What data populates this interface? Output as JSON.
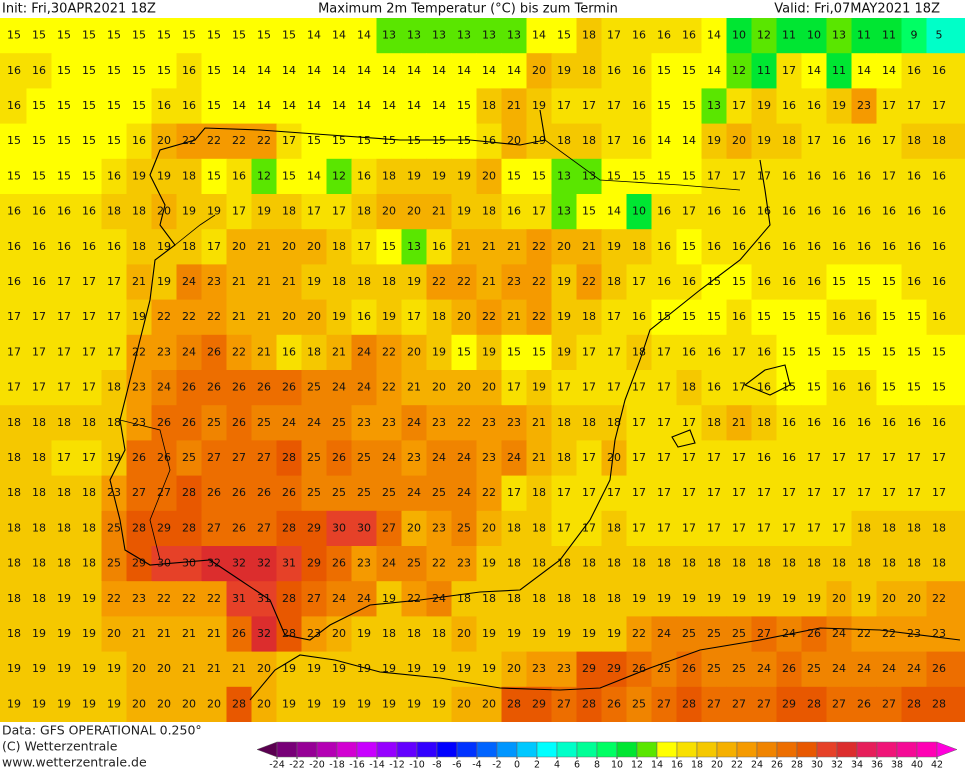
{
  "header": {
    "init": "Init: Fri,30APR2021 18Z",
    "title": "Maximum 2m Temperatur (°C) bis zum Termin",
    "valid": "Valid: Fri,07MAY2021 18Z"
  },
  "map": {
    "rows": [
      [
        15,
        15,
        15,
        15,
        15,
        15,
        15,
        15,
        15,
        15,
        15,
        15,
        14,
        14,
        14,
        13,
        13,
        13,
        13,
        13,
        13,
        14,
        15,
        18,
        17,
        16,
        16,
        16,
        14,
        10,
        12,
        11,
        10,
        13,
        11,
        11,
        9,
        5
      ],
      [
        16,
        16,
        15,
        15,
        15,
        15,
        15,
        16,
        15,
        14,
        14,
        14,
        14,
        14,
        14,
        14,
        14,
        14,
        14,
        14,
        14,
        20,
        19,
        18,
        16,
        16,
        15,
        15,
        14,
        12,
        11,
        17,
        14,
        11,
        14,
        14,
        16,
        16
      ],
      [
        16,
        15,
        15,
        15,
        15,
        15,
        16,
        16,
        15,
        14,
        14,
        14,
        14,
        14,
        14,
        14,
        14,
        14,
        15,
        18,
        21,
        19,
        17,
        17,
        17,
        16,
        15,
        15,
        13,
        17,
        19,
        16,
        16,
        19,
        23,
        17,
        17,
        17
      ],
      [
        15,
        15,
        15,
        15,
        15,
        16,
        20,
        22,
        22,
        22,
        22,
        17,
        15,
        15,
        15,
        15,
        15,
        15,
        15,
        16,
        20,
        19,
        18,
        18,
        17,
        16,
        14,
        14,
        19,
        20,
        19,
        18,
        17,
        16,
        16,
        17,
        18,
        18
      ],
      [
        15,
        15,
        15,
        15,
        16,
        19,
        19,
        18,
        15,
        16,
        12,
        15,
        14,
        12,
        16,
        18,
        19,
        19,
        19,
        20,
        15,
        15,
        13,
        13,
        15,
        15,
        15,
        15,
        17,
        17,
        17,
        16,
        16,
        16,
        16,
        17,
        16,
        16
      ],
      [
        16,
        16,
        16,
        16,
        18,
        18,
        20,
        19,
        19,
        17,
        19,
        18,
        17,
        17,
        18,
        20,
        20,
        21,
        19,
        18,
        16,
        17,
        13,
        15,
        14,
        10,
        16,
        17,
        16,
        16,
        16,
        16,
        16,
        16,
        16,
        16,
        16,
        16
      ],
      [
        16,
        16,
        16,
        16,
        16,
        18,
        19,
        18,
        17,
        20,
        21,
        20,
        20,
        18,
        17,
        15,
        13,
        16,
        21,
        21,
        21,
        22,
        20,
        21,
        19,
        18,
        16,
        15,
        16,
        16,
        16,
        16,
        16,
        16,
        16,
        16,
        16,
        16
      ],
      [
        16,
        16,
        17,
        17,
        17,
        21,
        19,
        24,
        23,
        21,
        21,
        21,
        19,
        18,
        18,
        18,
        19,
        22,
        22,
        21,
        23,
        22,
        19,
        22,
        18,
        17,
        16,
        16,
        15,
        15,
        16,
        16,
        16,
        15,
        15,
        15,
        16,
        16
      ],
      [
        17,
        17,
        17,
        17,
        17,
        19,
        22,
        22,
        22,
        21,
        21,
        20,
        20,
        19,
        16,
        19,
        17,
        18,
        20,
        22,
        21,
        22,
        19,
        18,
        17,
        16,
        15,
        15,
        15,
        16,
        15,
        15,
        15,
        16,
        16,
        15,
        15,
        16
      ],
      [
        17,
        17,
        17,
        17,
        17,
        22,
        23,
        24,
        26,
        22,
        21,
        16,
        18,
        21,
        24,
        22,
        20,
        19,
        15,
        19,
        15,
        15,
        19,
        17,
        17,
        18,
        17,
        16,
        16,
        17,
        16,
        15,
        15,
        15,
        15,
        15,
        15,
        15
      ],
      [
        17,
        17,
        17,
        17,
        18,
        23,
        24,
        26,
        26,
        26,
        26,
        26,
        25,
        24,
        24,
        22,
        21,
        20,
        20,
        20,
        17,
        19,
        17,
        17,
        17,
        17,
        17,
        18,
        16,
        17,
        16,
        15,
        15,
        16,
        16,
        15,
        15,
        15
      ],
      [
        18,
        18,
        18,
        18,
        18,
        23,
        26,
        26,
        25,
        26,
        25,
        24,
        24,
        25,
        23,
        23,
        24,
        23,
        22,
        23,
        23,
        21,
        18,
        18,
        18,
        17,
        17,
        17,
        18,
        21,
        18,
        16,
        16,
        16,
        16,
        16,
        16,
        16
      ],
      [
        18,
        18,
        17,
        17,
        19,
        26,
        26,
        25,
        27,
        27,
        27,
        28,
        25,
        26,
        25,
        24,
        23,
        24,
        24,
        23,
        24,
        21,
        18,
        17,
        20,
        17,
        17,
        17,
        17,
        17,
        16,
        16,
        17,
        17,
        17,
        17,
        17,
        17
      ],
      [
        18,
        18,
        18,
        18,
        23,
        27,
        27,
        28,
        26,
        26,
        26,
        26,
        25,
        25,
        25,
        25,
        24,
        25,
        24,
        22,
        17,
        18,
        17,
        17,
        17,
        17,
        17,
        17,
        17,
        17,
        17,
        17,
        17,
        17,
        17,
        17,
        17,
        17
      ],
      [
        18,
        18,
        18,
        18,
        25,
        28,
        29,
        28,
        27,
        26,
        27,
        28,
        29,
        30,
        30,
        27,
        20,
        23,
        25,
        20,
        18,
        18,
        17,
        17,
        18,
        17,
        17,
        17,
        17,
        17,
        17,
        17,
        17,
        17,
        18,
        18,
        18,
        18
      ],
      [
        18,
        18,
        18,
        18,
        25,
        29,
        30,
        30,
        32,
        32,
        32,
        31,
        29,
        26,
        23,
        24,
        25,
        22,
        23,
        19,
        18,
        18,
        18,
        18,
        18,
        18,
        18,
        18,
        18,
        18,
        18,
        18,
        18,
        18,
        18,
        18,
        18,
        18
      ],
      [
        18,
        18,
        19,
        19,
        22,
        23,
        22,
        22,
        22,
        31,
        31,
        28,
        27,
        24,
        24,
        19,
        22,
        24,
        18,
        18,
        18,
        18,
        18,
        18,
        18,
        19,
        19,
        19,
        19,
        19,
        19,
        19,
        19,
        20,
        19,
        20,
        20,
        22
      ],
      [
        18,
        19,
        19,
        19,
        20,
        21,
        21,
        21,
        21,
        26,
        32,
        28,
        23,
        20,
        19,
        18,
        18,
        18,
        20,
        19,
        19,
        19,
        19,
        19,
        19,
        22,
        24,
        25,
        25,
        25,
        27,
        24,
        26,
        24,
        22,
        22,
        23,
        23
      ],
      [
        19,
        19,
        19,
        19,
        19,
        20,
        20,
        21,
        21,
        21,
        20,
        19,
        19,
        19,
        19,
        19,
        19,
        19,
        19,
        19,
        20,
        23,
        23,
        29,
        29,
        26,
        25,
        26,
        25,
        25,
        24,
        26,
        25,
        24,
        24,
        24,
        24,
        26
      ],
      [
        19,
        19,
        19,
        19,
        19,
        20,
        20,
        20,
        20,
        28,
        20,
        19,
        19,
        19,
        19,
        19,
        19,
        19,
        20,
        20,
        28,
        29,
        27,
        28,
        26,
        25,
        27,
        28,
        27,
        27,
        27,
        29,
        28,
        27,
        26,
        27,
        28,
        28
      ]
    ]
  },
  "legend": {
    "ticks": [
      -24,
      -22,
      -20,
      -18,
      -16,
      -14,
      -12,
      -10,
      -8,
      -6,
      -4,
      -2,
      0,
      2,
      4,
      6,
      8,
      10,
      12,
      14,
      16,
      18,
      20,
      22,
      24,
      26,
      28,
      30,
      32,
      34,
      36,
      38,
      40,
      42
    ],
    "colors": [
      "#5a0050",
      "#780078",
      "#960096",
      "#b400b4",
      "#d200d2",
      "#c800ff",
      "#9600ff",
      "#6400ff",
      "#3200ff",
      "#0000ff",
      "#0032ff",
      "#0064ff",
      "#0096ff",
      "#00c8ff",
      "#00ffff",
      "#00ffc8",
      "#00ff96",
      "#00ff64",
      "#00e632",
      "#5ae600",
      "#ffff00",
      "#f8e000",
      "#f5c800",
      "#f5b000",
      "#f59a00",
      "#f08400",
      "#ed6e00",
      "#e85800",
      "#e64128",
      "#dc2d2d",
      "#e61e5a",
      "#f01478",
      "#f50a96",
      "#ff00b4",
      "#ff00dc"
    ]
  },
  "footer": {
    "data": "Data: GFS OPERATIONAL 0.250°",
    "copyright": "(C) Wetterzentrale",
    "url": "www.wetterzentrale.de"
  }
}
